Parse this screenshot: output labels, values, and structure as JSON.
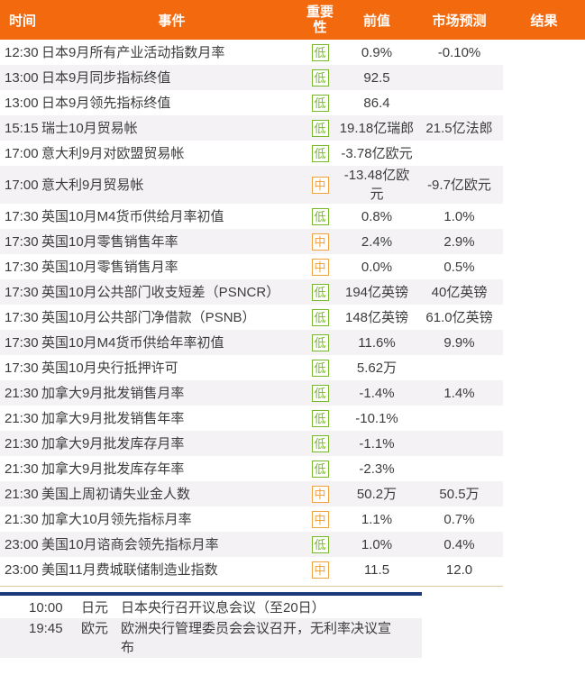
{
  "colors": {
    "header_bg": "#f2690e",
    "header_text": "#ffffff",
    "row_stripe": "#f4f2f5",
    "bottom_stripe": "#f2f0f3",
    "importance_low": "#76b82a",
    "importance_mid": "#f0a23e",
    "navy_rule": "#1a3a7c",
    "tan_rule": "#dacba5",
    "body_text": "#3c3c3c"
  },
  "table": {
    "columns": [
      {
        "label": "时间"
      },
      {
        "label": "事件"
      },
      {
        "label": "重要性"
      },
      {
        "label": "前值"
      },
      {
        "label": "市场预测"
      },
      {
        "label": "结果"
      }
    ],
    "rows": [
      {
        "time": "12:30",
        "event": "日本9月所有产业活动指数月率",
        "importance": "低",
        "level": "low",
        "previous": "0.9%",
        "forecast": "-0.10%",
        "result": ""
      },
      {
        "time": "13:00",
        "event": "日本9月同步指标终值",
        "importance": "低",
        "level": "low",
        "previous": "92.5",
        "forecast": "",
        "result": ""
      },
      {
        "time": "13:00",
        "event": "日本9月领先指标终值",
        "importance": "低",
        "level": "low",
        "previous": "86.4",
        "forecast": "",
        "result": ""
      },
      {
        "time": "15:15",
        "event": "瑞士10月贸易帐",
        "importance": "低",
        "level": "low",
        "previous": "19.18亿瑞郎",
        "forecast": "21.5亿法郎",
        "result": ""
      },
      {
        "time": "17:00",
        "event": "意大利9月对欧盟贸易帐",
        "importance": "低",
        "level": "low",
        "previous": "-3.78亿欧元",
        "forecast": "",
        "result": ""
      },
      {
        "time": "17:00",
        "event": "意大利9月贸易帐",
        "importance": "中",
        "level": "mid",
        "previous": "-13.48亿欧元",
        "forecast": "-9.7亿欧元",
        "result": ""
      },
      {
        "time": "17:30",
        "event": "英国10月M4货币供给月率初值",
        "importance": "低",
        "level": "low",
        "previous": "0.8%",
        "forecast": "1.0%",
        "result": ""
      },
      {
        "time": "17:30",
        "event": "英国10月零售销售年率",
        "importance": "中",
        "level": "mid",
        "previous": "2.4%",
        "forecast": "2.9%",
        "result": ""
      },
      {
        "time": "17:30",
        "event": "英国10月零售销售月率",
        "importance": "中",
        "level": "mid",
        "previous": "0.0%",
        "forecast": "0.5%",
        "result": ""
      },
      {
        "time": "17:30",
        "event": "英国10月公共部门收支短差（PSNCR）",
        "importance": "低",
        "level": "low",
        "previous": "194亿英镑",
        "forecast": "40亿英镑",
        "result": ""
      },
      {
        "time": "17:30",
        "event": "英国10月公共部门净借款（PSNB）",
        "importance": "低",
        "level": "low",
        "previous": "148亿英镑",
        "forecast": "61.0亿英镑",
        "result": ""
      },
      {
        "time": "17:30",
        "event": "英国10月M4货币供给年率初值",
        "importance": "低",
        "level": "low",
        "previous": "11.6%",
        "forecast": "9.9%",
        "result": ""
      },
      {
        "time": "17:30",
        "event": "英国10月央行抵押许可",
        "importance": "低",
        "level": "low",
        "previous": "5.62万",
        "forecast": "",
        "result": ""
      },
      {
        "time": "21:30",
        "event": "加拿大9月批发销售月率",
        "importance": "低",
        "level": "low",
        "previous": "-1.4%",
        "forecast": "1.4%",
        "result": ""
      },
      {
        "time": "21:30",
        "event": "加拿大9月批发销售年率",
        "importance": "低",
        "level": "low",
        "previous": "-10.1%",
        "forecast": "",
        "result": ""
      },
      {
        "time": "21:30",
        "event": "加拿大9月批发库存月率",
        "importance": "低",
        "level": "low",
        "previous": "-1.1%",
        "forecast": "",
        "result": ""
      },
      {
        "time": "21:30",
        "event": "加拿大9月批发库存年率",
        "importance": "低",
        "level": "low",
        "previous": "-2.3%",
        "forecast": "",
        "result": ""
      },
      {
        "time": "21:30",
        "event": "美国上周初请失业金人数",
        "importance": "中",
        "level": "mid",
        "previous": "50.2万",
        "forecast": "50.5万",
        "result": ""
      },
      {
        "time": "21:30",
        "event": "加拿大10月领先指标月率",
        "importance": "中",
        "level": "mid",
        "previous": "1.1%",
        "forecast": "0.7%",
        "result": ""
      },
      {
        "time": "23:00",
        "event": "美国10月谘商会领先指标月率",
        "importance": "低",
        "level": "low",
        "previous": "1.0%",
        "forecast": "0.4%",
        "result": ""
      },
      {
        "time": "23:00",
        "event": "美国11月费城联储制造业指数",
        "importance": "中",
        "level": "mid",
        "previous": "11.5",
        "forecast": "12.0",
        "result": ""
      }
    ]
  },
  "bottom_events": {
    "rows": [
      {
        "time": "10:00",
        "currency": "日元",
        "event": "日本央行召开议息会议（至20日）"
      },
      {
        "time": "19:45",
        "currency": "欧元",
        "event": "欧洲央行管理委员会会议召开，无利率决议宣布"
      }
    ]
  }
}
